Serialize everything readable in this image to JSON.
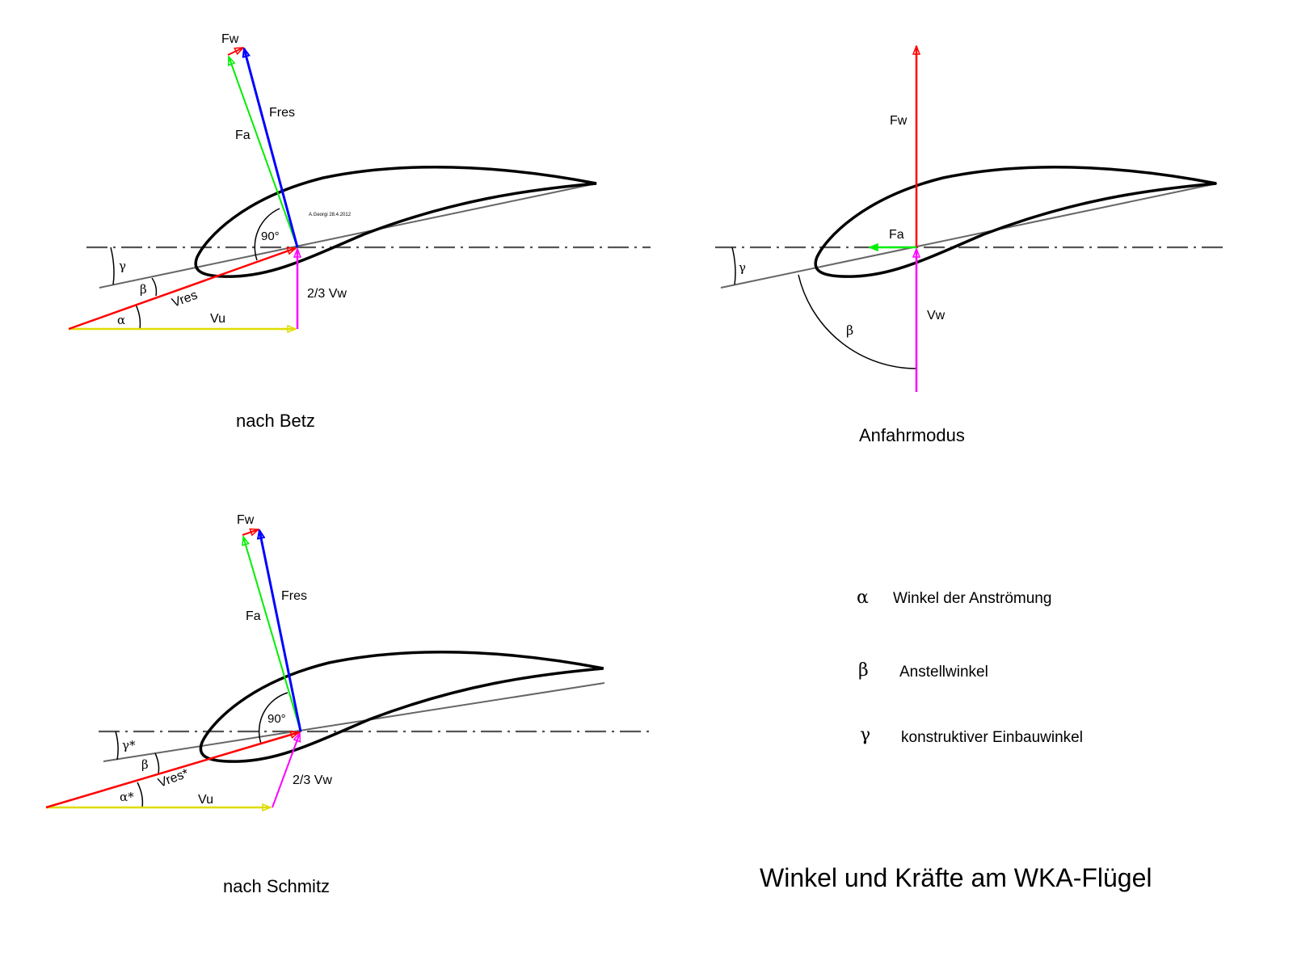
{
  "title": "Winkel und Kräfte am WKA-Flügel",
  "signature": "A.Georgi 28.4.2012",
  "colors": {
    "Vu": "#dddd00",
    "Vw": "#ff00ff",
    "Vres": "#ff0000",
    "Fa": "#00ee00",
    "Fres": "#0000ff",
    "Fw": "#ff0000"
  },
  "betz": {
    "caption": "nach Betz",
    "Fw": "Fw",
    "Fres": "Fres",
    "Fa": "Fa",
    "right_angle": "90°",
    "gamma": "γ",
    "beta": "β",
    "alpha": "α",
    "Vres": "Vres",
    "Vu": "Vu",
    "Vw": "2/3 Vw"
  },
  "anfahr": {
    "caption": "Anfahrmodus",
    "Fw": "Fw",
    "Fa": "Fa",
    "Vw": "Vw",
    "gamma": "γ",
    "beta": "β"
  },
  "schmitz": {
    "caption": "nach Schmitz",
    "Fw": "Fw",
    "Fres": "Fres",
    "Fa": "Fa",
    "right_angle": "90°",
    "gamma": "γ*",
    "beta": "β",
    "alpha": "α*",
    "Vres": "Vres*",
    "Vu": "Vu",
    "Vw": "2/3 Vw"
  },
  "legend": [
    {
      "symbol": "α",
      "text": "Winkel der Anströmung"
    },
    {
      "symbol": "β",
      "text": "Anstellwinkel"
    },
    {
      "symbol": "γ",
      "text": "konstruktiver Einbauwinkel"
    }
  ]
}
